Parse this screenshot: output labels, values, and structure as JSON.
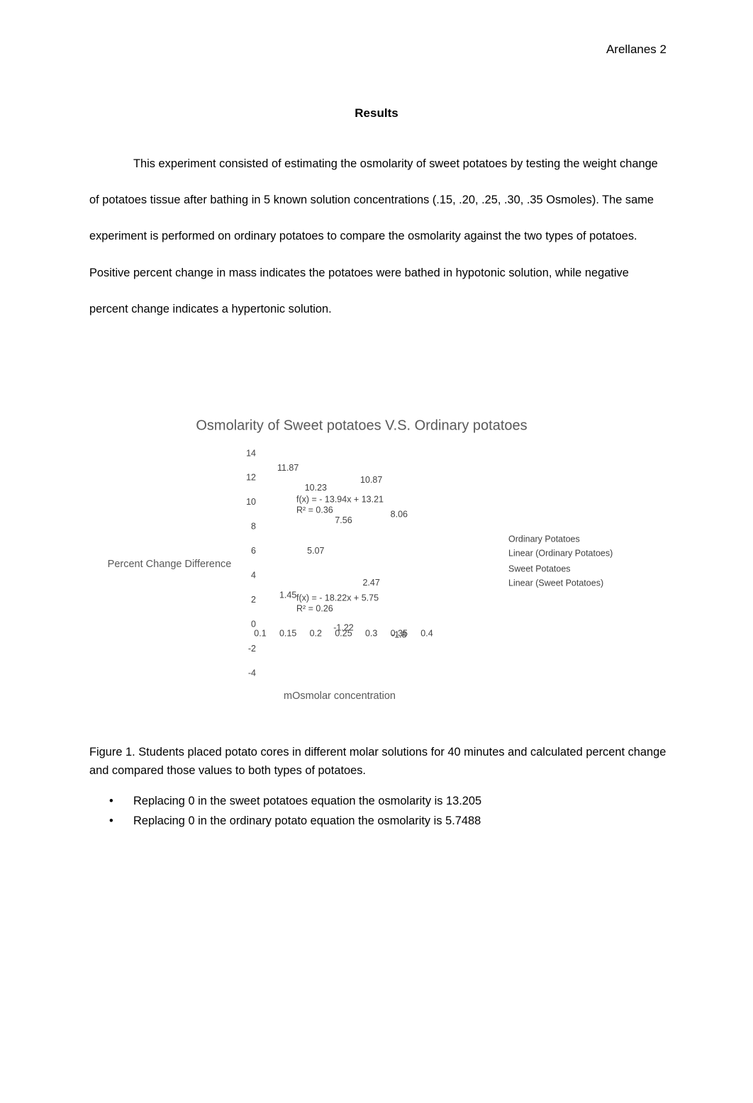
{
  "header": {
    "page_label": "Arellanes 2"
  },
  "section_title": "Results",
  "paragraph": "This experiment consisted of estimating the osmolarity of sweet potatoes by testing the weight change of potatoes tissue after bathing in 5 known solution concentrations (.15, .20, .25, .30, .35 Osmoles). The same experiment is performed on ordinary potatoes to compare the osmolarity against the two types of potatoes. Positive percent change in mass indicates the potatoes were bathed in  hypotonic solution, while negative percent change indicates a hypertonic solution.",
  "chart_data": {
    "type": "scatter",
    "title": "Osmolarity of Sweet potatoes V.S. Ordinary potatoes",
    "x_label": "mOsmolar concentration",
    "y_label": "Percent Change Difference",
    "x": [
      0.15,
      0.2,
      0.25,
      0.3,
      0.35
    ],
    "series": [
      {
        "name": "Ordinary Potatoes",
        "color": "#404040",
        "values": [
          1.45,
          5.07,
          -1.22,
          2.47,
          -1.8
        ]
      },
      {
        "name": "Sweet Potatoes",
        "color": "#404040",
        "values": [
          11.87,
          10.23,
          7.56,
          10.87,
          8.06
        ]
      }
    ],
    "trendlines": [
      {
        "name": "Linear (Ordinary Potatoes)",
        "equation": "f(x) =  - 18.22x + 5.75",
        "r2": "R² = 0.26"
      },
      {
        "name": "Linear (Sweet Potatoes)",
        "equation": "f(x) =  - 13.94x + 13.21",
        "r2": "R² = 0.36"
      }
    ],
    "xlim": [
      0.1,
      0.4
    ],
    "xticks": [
      0.1,
      0.15,
      0.2,
      0.25,
      0.3,
      0.35,
      0.4
    ],
    "ylim": [
      -4,
      14
    ],
    "yticks": [
      14,
      12,
      10,
      8,
      6,
      4,
      2,
      0,
      -2,
      -4
    ],
    "legend_position": "right"
  },
  "caption": "Figure 1. Students placed potato cores in different molar solutions for 40 minutes and calculated percent change and compared those values to both types of potatoes.",
  "bullets": [
    "Replacing 0 in the sweet potatoes equation the osmolarity is 13.205",
    "Replacing 0 in the ordinary potato equation the osmolarity is 5.7488"
  ]
}
